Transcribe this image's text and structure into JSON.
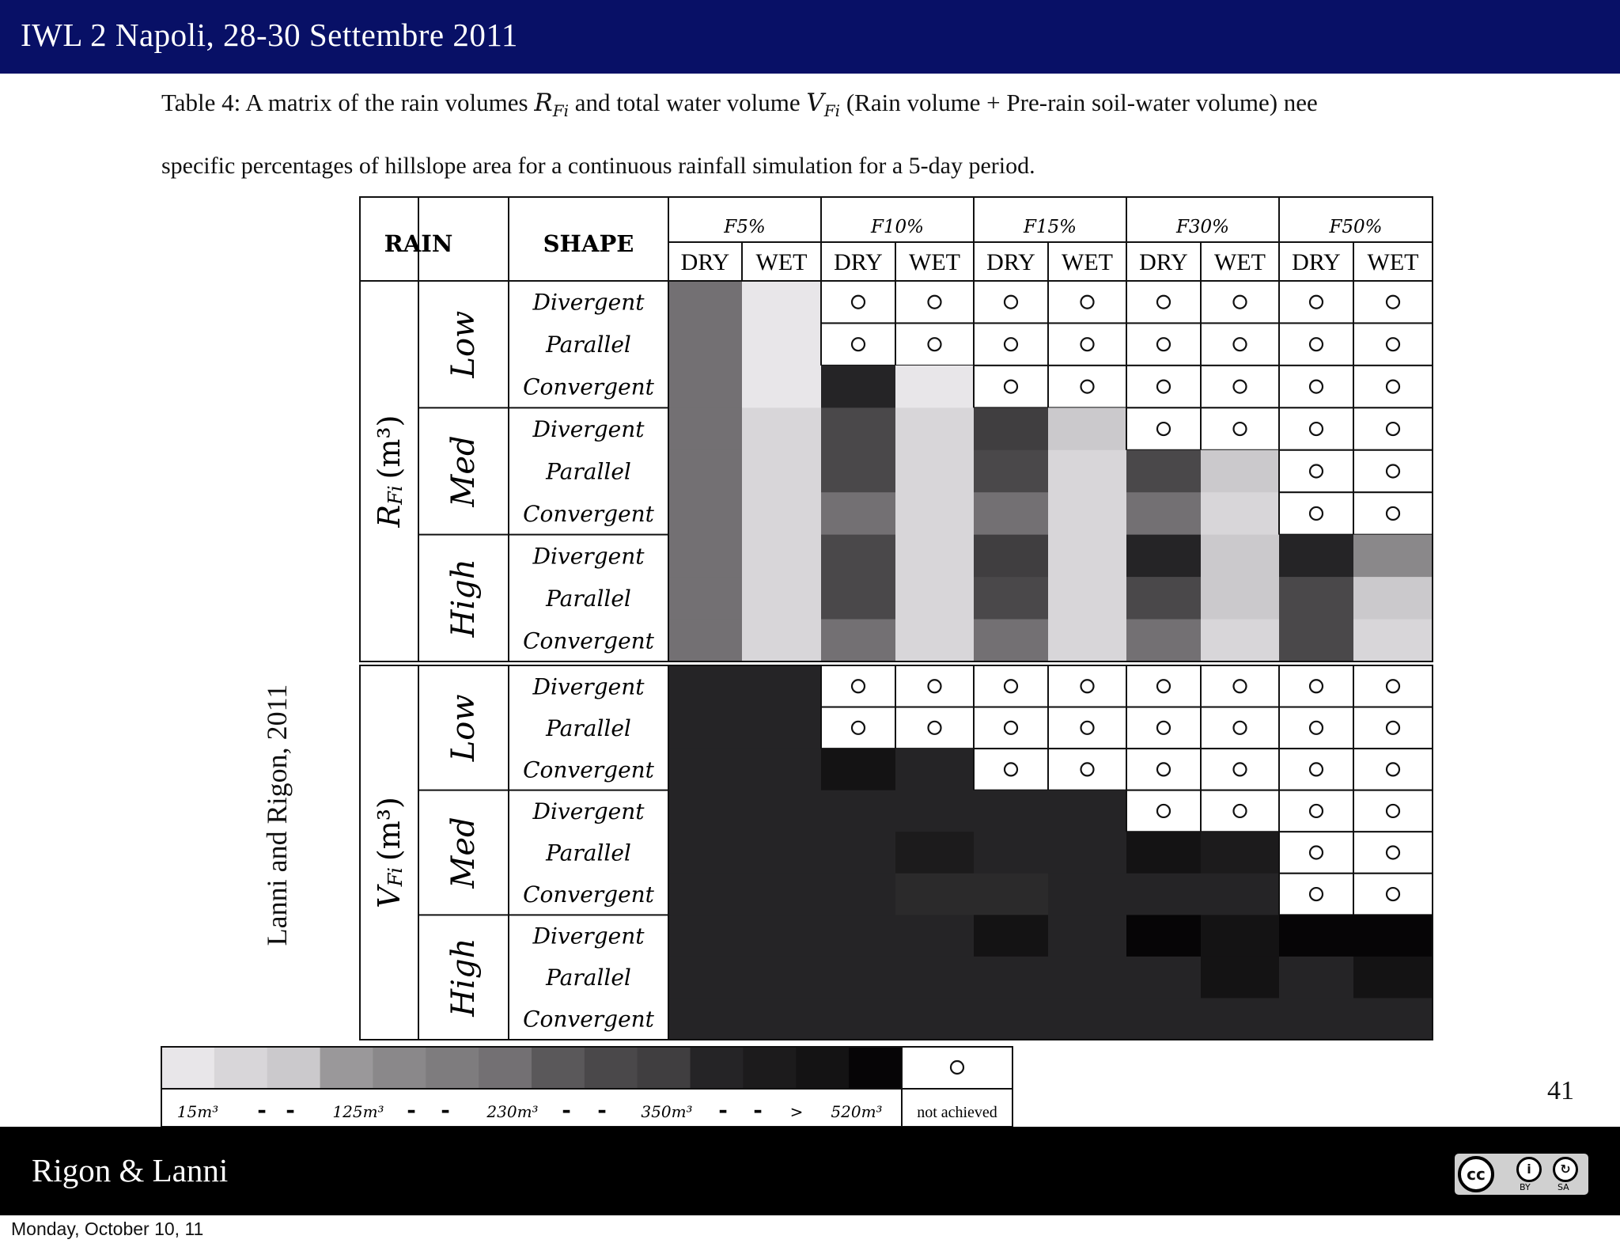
{
  "header": {
    "title": "IWL 2 Napoli, 28-30 Settembre 2011"
  },
  "caption": {
    "label": "Table 4:",
    "text_a": " A matrix of the rain volumes ",
    "sym_r": "R",
    "sub_r": "Fi",
    "text_b": " and total water volume ",
    "sym_v": "V",
    "sub_v": "Fi",
    "text_c": " (Rain volume + Pre-rain soil-water volume) nee",
    "line2": "specific percentages of hillslope area for a continuous rainfall simulation for a 5-day period."
  },
  "table": {
    "head_rain": "RAIN",
    "head_shape": "SHAPE",
    "area_groups": [
      "F5%",
      "F10%",
      "F15%",
      "F30%",
      "F50%"
    ],
    "conditions": [
      "DRY",
      "WET",
      "DRY",
      "WET",
      "DRY",
      "WET",
      "DRY",
      "WET",
      "DRY",
      "WET"
    ],
    "rain_levels": [
      "Low",
      "Med",
      "High"
    ],
    "shapes": [
      "Divergent",
      "Parallel",
      "Convergent"
    ],
    "not_achieved_symbol": "○",
    "blocks": [
      {
        "label": "R",
        "sub": "Fi",
        "unit": "(m³)",
        "rows": [
          [
            "#737073",
            "#e8e6e9",
            "o",
            "o",
            "o",
            "o",
            "o",
            "o",
            "o",
            "o"
          ],
          [
            "#737073",
            "#e8e6e9",
            "o",
            "o",
            "o",
            "o",
            "o",
            "o",
            "o",
            "o"
          ],
          [
            "#737073",
            "#e8e6e9",
            "#252426",
            "#e8e6e9",
            "o",
            "o",
            "o",
            "o",
            "o",
            "o"
          ],
          [
            "#737073",
            "#d8d6d9",
            "#4a484a",
            "#d8d6d9",
            "#403e40",
            "#cbc9cc",
            "o",
            "o",
            "o",
            "o"
          ],
          [
            "#737073",
            "#d8d6d9",
            "#4a484a",
            "#d8d6d9",
            "#4a484a",
            "#d8d6d9",
            "#4a484a",
            "#cbc9cc",
            "o",
            "o"
          ],
          [
            "#737073",
            "#d8d6d9",
            "#737073",
            "#d8d6d9",
            "#737073",
            "#d8d6d9",
            "#737073",
            "#d8d6d9",
            "o",
            "o"
          ],
          [
            "#737073",
            "#d8d6d9",
            "#4a484a",
            "#d8d6d9",
            "#403e40",
            "#d8d6d9",
            "#252426",
            "#cbc9cc",
            "#252426",
            "#8a888a"
          ],
          [
            "#737073",
            "#d8d6d9",
            "#4a484a",
            "#d8d6d9",
            "#4a484a",
            "#d8d6d9",
            "#4a484a",
            "#cbc9cc",
            "#4a484a",
            "#cbc9cc"
          ],
          [
            "#737073",
            "#d8d6d9",
            "#737073",
            "#d8d6d9",
            "#737073",
            "#d8d6d9",
            "#737073",
            "#d8d6d9",
            "#4a484a",
            "#d8d6d9"
          ]
        ]
      },
      {
        "label": "V",
        "sub": "Fi",
        "unit": "(m³)",
        "rows": [
          [
            "#252426",
            "#252426",
            "o",
            "o",
            "o",
            "o",
            "o",
            "o",
            "o",
            "o"
          ],
          [
            "#252426",
            "#252426",
            "o",
            "o",
            "o",
            "o",
            "o",
            "o",
            "o",
            "o"
          ],
          [
            "#252426",
            "#252426",
            "#141314",
            "#252426",
            "o",
            "o",
            "o",
            "o",
            "o",
            "o"
          ],
          [
            "#252426",
            "#252426",
            "#252426",
            "#252426",
            "#252426",
            "#252426",
            "o",
            "o",
            "o",
            "o"
          ],
          [
            "#252426",
            "#252426",
            "#252426",
            "#1c1b1c",
            "#252426",
            "#252426",
            "#141314",
            "#1c1b1c",
            "o",
            "o"
          ],
          [
            "#252426",
            "#252426",
            "#252426",
            "#2b2a2b",
            "#2b2a2b",
            "#252426",
            "#252426",
            "#252426",
            "o",
            "o"
          ],
          [
            "#252426",
            "#252426",
            "#252426",
            "#252426",
            "#141314",
            "#252426",
            "#060506",
            "#141314",
            "#060506",
            "#060506"
          ],
          [
            "#252426",
            "#252426",
            "#252426",
            "#252426",
            "#252426",
            "#252426",
            "#252426",
            "#141314",
            "#252426",
            "#141314"
          ],
          [
            "#252426",
            "#252426",
            "#252426",
            "#252426",
            "#252426",
            "#252426",
            "#252426",
            "#252426",
            "#252426",
            "#252426"
          ]
        ]
      }
    ]
  },
  "legend": {
    "swatches": [
      "#e8e6e9",
      "#d8d6d9",
      "#cbc9cc",
      "#9a989a",
      "#8a888a",
      "#7e7c7e",
      "#737073",
      "#5a585a",
      "#4a484a",
      "#403e40",
      "#252426",
      "#1c1b1c",
      "#141314",
      "#060506"
    ],
    "labels": [
      "15m³",
      "-",
      "-",
      "125m³",
      "-",
      "-",
      "230m³",
      "-",
      "-",
      "350m³",
      "-",
      "-",
      ">",
      "520m³"
    ],
    "not_achieved_symbol": "○",
    "not_achieved_label": "not achieved"
  },
  "side_label": "Lanni and Rigon, 2011",
  "page_number": "41",
  "footer": {
    "authors": "Rigon & Lanni"
  },
  "license": {
    "cc": "cc",
    "by": "BY",
    "sa": "SA"
  },
  "date_stamp": "Monday, October 10, 11"
}
